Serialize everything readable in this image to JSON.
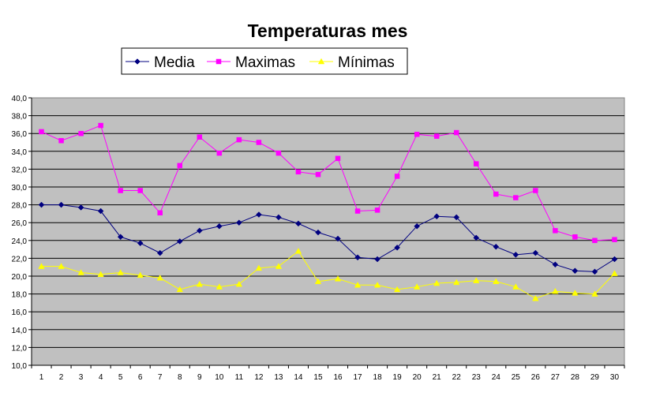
{
  "chart_data": {
    "type": "line",
    "title": "Temperaturas mes",
    "xlabel": "",
    "ylabel": "",
    "categories": [
      "1",
      "2",
      "3",
      "4",
      "5",
      "6",
      "7",
      "8",
      "9",
      "10",
      "11",
      "12",
      "13",
      "14",
      "15",
      "16",
      "17",
      "18",
      "19",
      "20",
      "21",
      "22",
      "23",
      "24",
      "25",
      "26",
      "27",
      "28",
      "29",
      "30"
    ],
    "ylim": [
      10,
      40
    ],
    "ytick_step": 2,
    "ytick_labels": [
      "10,0",
      "12,0",
      "14,0",
      "16,0",
      "18,0",
      "20,0",
      "22,0",
      "24,0",
      "26,0",
      "28,0",
      "30,0",
      "32,0",
      "34,0",
      "36,0",
      "38,0",
      "40,0"
    ],
    "grid": true,
    "legend_position": "top",
    "plot_background": "#c0c0c0",
    "series": [
      {
        "name": "Media",
        "color": "#000080",
        "marker": "diamond",
        "values": [
          28.0,
          28.0,
          27.7,
          27.3,
          24.4,
          23.7,
          22.6,
          23.9,
          25.1,
          25.6,
          26.0,
          26.9,
          26.6,
          25.9,
          24.9,
          24.2,
          22.1,
          21.9,
          23.2,
          25.6,
          26.7,
          26.6,
          24.3,
          23.3,
          22.4,
          22.6,
          21.3,
          20.6,
          20.5,
          21.9
        ]
      },
      {
        "name": "Maximas",
        "color": "#ff00ff",
        "marker": "square",
        "values": [
          36.2,
          35.2,
          36.0,
          36.9,
          29.6,
          29.6,
          27.1,
          32.4,
          35.6,
          33.8,
          35.3,
          35.0,
          33.8,
          31.7,
          31.4,
          33.2,
          27.3,
          27.4,
          31.2,
          35.9,
          35.7,
          36.1,
          32.6,
          29.2,
          28.8,
          29.6,
          25.1,
          24.4,
          24.0,
          24.1
        ]
      },
      {
        "name": "Mínimas",
        "color": "#ffff00",
        "marker": "triangle",
        "values": [
          21.1,
          21.1,
          20.4,
          20.2,
          20.4,
          20.1,
          19.8,
          18.5,
          19.1,
          18.8,
          19.1,
          20.9,
          21.1,
          22.8,
          19.4,
          19.7,
          19.0,
          19.0,
          18.5,
          18.8,
          19.2,
          19.3,
          19.5,
          19.4,
          18.8,
          17.5,
          18.3,
          18.1,
          18.0,
          20.3
        ]
      }
    ]
  }
}
